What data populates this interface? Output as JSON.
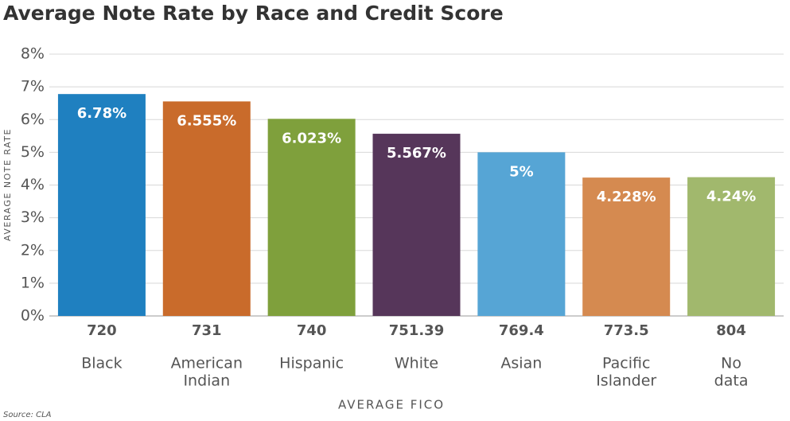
{
  "chart_data": {
    "type": "bar",
    "title": "Average Note Rate by Race and Credit Score",
    "y_label": "AVERAGE NOTE RATE",
    "x_label": "AVERAGE FICO",
    "source": "Source: CLA",
    "categories": [
      [
        "Black"
      ],
      [
        "American",
        "Indian"
      ],
      [
        "Hispanic"
      ],
      [
        "White"
      ],
      [
        "Asian"
      ],
      [
        "Pacific",
        "Islander"
      ],
      [
        "No",
        "data"
      ]
    ],
    "fico_scores": [
      720,
      731,
      740,
      751.39,
      769.4,
      773.5,
      804
    ],
    "values": [
      6.78,
      6.555,
      6.023,
      5.567,
      5,
      4.228,
      4.24
    ],
    "value_labels": [
      "6.78%",
      "6.555%",
      "6.023%",
      "5.567%",
      "5%",
      "4.228%",
      "4.24%"
    ],
    "colors": [
      "#1f80c0",
      "#c96b2b",
      "#7fa03c",
      "#56365a",
      "#56a5d5",
      "#d58a50",
      "#a1b86d"
    ],
    "ylim": [
      0,
      8
    ],
    "yticks": [
      {
        "value": 0,
        "label": "0%"
      },
      {
        "value": 1,
        "label": "1%"
      },
      {
        "value": 2,
        "label": "2%"
      },
      {
        "value": 3,
        "label": "3%"
      },
      {
        "value": 4,
        "label": "4%"
      },
      {
        "value": 5,
        "label": "5%"
      },
      {
        "value": 6,
        "label": "6%"
      },
      {
        "value": 7,
        "label": "7%"
      },
      {
        "value": 8,
        "label": "8%"
      }
    ],
    "grid": true
  }
}
